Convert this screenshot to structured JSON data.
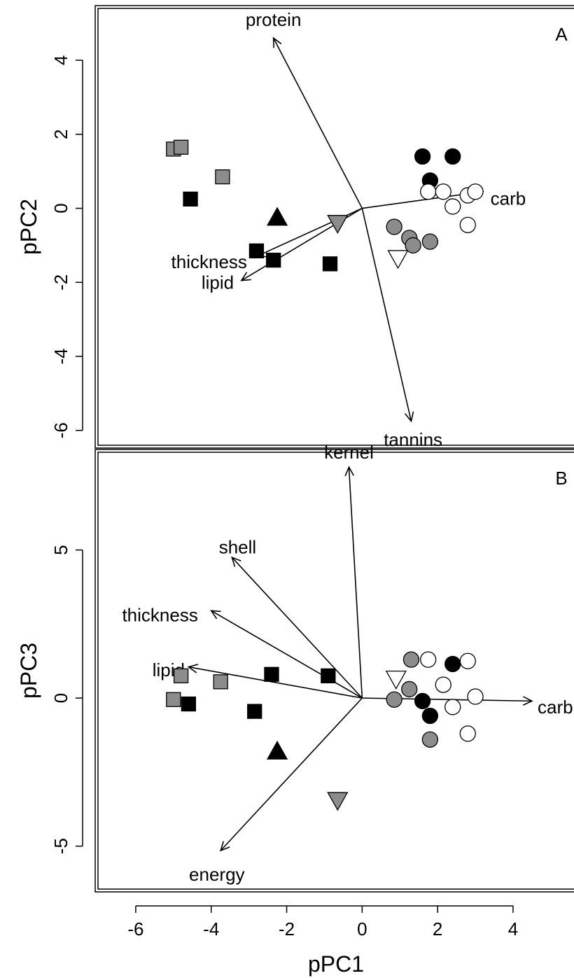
{
  "chart_data": [
    {
      "type": "scatter",
      "panel": "A",
      "panel_label": "A",
      "xlabel": "pPC1",
      "ylabel": "pPC2",
      "xlim": [
        -7,
        5.8
      ],
      "ylim": [
        -6.4,
        5.4
      ],
      "x_ticks": [
        -6,
        -4,
        -2,
        0,
        2,
        4
      ],
      "y_ticks": [
        -6,
        -4,
        -2,
        0,
        2,
        4
      ],
      "show_x_axis": false,
      "points": [
        {
          "x": -5.0,
          "y": 1.6,
          "marker": "square",
          "fill": "#8c8c8c"
        },
        {
          "x": -4.8,
          "y": 1.65,
          "marker": "square",
          "fill": "#8c8c8c"
        },
        {
          "x": -3.7,
          "y": 0.85,
          "marker": "square",
          "fill": "#8c8c8c"
        },
        {
          "x": -4.55,
          "y": 0.25,
          "marker": "square",
          "fill": "#000000"
        },
        {
          "x": -2.8,
          "y": -1.15,
          "marker": "square",
          "fill": "#000000"
        },
        {
          "x": -2.35,
          "y": -1.4,
          "marker": "square",
          "fill": "#000000"
        },
        {
          "x": -0.85,
          "y": -1.5,
          "marker": "square",
          "fill": "#000000"
        },
        {
          "x": -2.25,
          "y": -0.25,
          "marker": "triangle-up",
          "fill": "#000000"
        },
        {
          "x": -0.65,
          "y": -0.4,
          "marker": "triangle-down",
          "fill": "#8c8c8c"
        },
        {
          "x": 0.95,
          "y": -1.35,
          "marker": "triangle-down",
          "fill": "#ffffff"
        },
        {
          "x": 1.6,
          "y": 1.4,
          "marker": "circle",
          "fill": "#000000"
        },
        {
          "x": 2.4,
          "y": 1.4,
          "marker": "circle",
          "fill": "#000000"
        },
        {
          "x": 1.8,
          "y": 0.75,
          "marker": "circle",
          "fill": "#000000"
        },
        {
          "x": 1.75,
          "y": 0.45,
          "marker": "circle",
          "fill": "#ffffff"
        },
        {
          "x": 2.15,
          "y": 0.45,
          "marker": "circle",
          "fill": "#ffffff"
        },
        {
          "x": 2.4,
          "y": 0.05,
          "marker": "circle",
          "fill": "#ffffff"
        },
        {
          "x": 2.8,
          "y": 0.35,
          "marker": "circle",
          "fill": "#ffffff"
        },
        {
          "x": 3.0,
          "y": 0.45,
          "marker": "circle",
          "fill": "#ffffff"
        },
        {
          "x": 2.8,
          "y": -0.45,
          "marker": "circle",
          "fill": "#ffffff"
        },
        {
          "x": 0.85,
          "y": -0.5,
          "marker": "circle",
          "fill": "#8c8c8c"
        },
        {
          "x": 1.25,
          "y": -0.8,
          "marker": "circle",
          "fill": "#8c8c8c"
        },
        {
          "x": 1.35,
          "y": -1.0,
          "marker": "circle",
          "fill": "#8c8c8c"
        },
        {
          "x": 1.8,
          "y": -0.9,
          "marker": "circle",
          "fill": "#8c8c8c"
        }
      ],
      "vectors": [
        {
          "label": "protein",
          "x": -2.35,
          "y": 4.6,
          "label_x": -2.35,
          "label_y": 5.1,
          "anchor": "middle"
        },
        {
          "label": "carb",
          "x": 3.2,
          "y": 0.45,
          "label_x": 3.4,
          "label_y": 0.27,
          "anchor": "start"
        },
        {
          "label": "tannins",
          "x": 1.3,
          "y": -5.75,
          "label_x": 1.35,
          "label_y": -6.25,
          "anchor": "middle"
        },
        {
          "label": "thickness",
          "x": -2.8,
          "y": -1.3,
          "label_x": -3.05,
          "label_y": -1.45,
          "anchor": "end"
        },
        {
          "label": "lipid",
          "x": -3.2,
          "y": -1.95,
          "label_x": -3.4,
          "label_y": -2.0,
          "anchor": "end"
        }
      ]
    },
    {
      "type": "scatter",
      "panel": "B",
      "panel_label": "B",
      "xlabel": "pPC1",
      "ylabel": "pPC3",
      "xlim": [
        -7,
        5.8
      ],
      "ylim": [
        -6.45,
        8.3
      ],
      "x_ticks": [
        -6,
        -4,
        -2,
        0,
        2,
        4
      ],
      "y_ticks": [
        -5,
        0,
        5
      ],
      "show_x_axis": true,
      "points": [
        {
          "x": -4.8,
          "y": 0.75,
          "marker": "square",
          "fill": "#8c8c8c"
        },
        {
          "x": -3.75,
          "y": 0.55,
          "marker": "square",
          "fill": "#8c8c8c"
        },
        {
          "x": -5.0,
          "y": -0.05,
          "marker": "square",
          "fill": "#8c8c8c"
        },
        {
          "x": -4.6,
          "y": -0.2,
          "marker": "square",
          "fill": "#000000"
        },
        {
          "x": -2.4,
          "y": 0.8,
          "marker": "square",
          "fill": "#000000"
        },
        {
          "x": -2.85,
          "y": -0.45,
          "marker": "square",
          "fill": "#000000"
        },
        {
          "x": -0.9,
          "y": 0.75,
          "marker": "square",
          "fill": "#000000"
        },
        {
          "x": -2.25,
          "y": -1.8,
          "marker": "triangle-up",
          "fill": "#000000"
        },
        {
          "x": -0.65,
          "y": -3.45,
          "marker": "triangle-down",
          "fill": "#8c8c8c"
        },
        {
          "x": 0.9,
          "y": 0.65,
          "marker": "triangle-down",
          "fill": "#ffffff"
        },
        {
          "x": 1.3,
          "y": 1.3,
          "marker": "circle",
          "fill": "#8c8c8c"
        },
        {
          "x": 1.75,
          "y": 1.3,
          "marker": "circle",
          "fill": "#ffffff"
        },
        {
          "x": 2.8,
          "y": 1.25,
          "marker": "circle",
          "fill": "#ffffff"
        },
        {
          "x": 2.4,
          "y": 1.15,
          "marker": "circle",
          "fill": "#000000"
        },
        {
          "x": 2.15,
          "y": 0.45,
          "marker": "circle",
          "fill": "#ffffff"
        },
        {
          "x": 1.25,
          "y": 0.3,
          "marker": "circle",
          "fill": "#8c8c8c"
        },
        {
          "x": 0.85,
          "y": -0.05,
          "marker": "circle",
          "fill": "#8c8c8c"
        },
        {
          "x": 1.6,
          "y": -0.1,
          "marker": "circle",
          "fill": "#000000"
        },
        {
          "x": 3.0,
          "y": 0.05,
          "marker": "circle",
          "fill": "#ffffff"
        },
        {
          "x": 2.4,
          "y": -0.3,
          "marker": "circle",
          "fill": "#ffffff"
        },
        {
          "x": 1.8,
          "y": -0.6,
          "marker": "circle",
          "fill": "#000000"
        },
        {
          "x": 2.8,
          "y": -1.2,
          "marker": "circle",
          "fill": "#ffffff"
        },
        {
          "x": 1.8,
          "y": -1.4,
          "marker": "circle",
          "fill": "#8c8c8c"
        }
      ],
      "vectors": [
        {
          "label": "kernel",
          "x": -0.35,
          "y": 7.8,
          "label_x": -0.35,
          "label_y": 8.3,
          "anchor": "middle"
        },
        {
          "label": "shell",
          "x": -3.45,
          "y": 4.75,
          "label_x": -3.3,
          "label_y": 5.1,
          "anchor": "middle"
        },
        {
          "label": "thickness",
          "x": -4.0,
          "y": 2.95,
          "label_x": -4.35,
          "label_y": 2.8,
          "anchor": "end"
        },
        {
          "label": "lipid",
          "x": -4.6,
          "y": 1.05,
          "label_x": -4.7,
          "label_y": 0.95,
          "anchor": "end"
        },
        {
          "label": "carb",
          "x": 4.5,
          "y": -0.1,
          "label_x": 4.65,
          "label_y": -0.3,
          "anchor": "start"
        },
        {
          "label": "energy",
          "x": -3.75,
          "y": -5.15,
          "label_x": -3.85,
          "label_y": -5.95,
          "anchor": "middle"
        }
      ]
    }
  ]
}
